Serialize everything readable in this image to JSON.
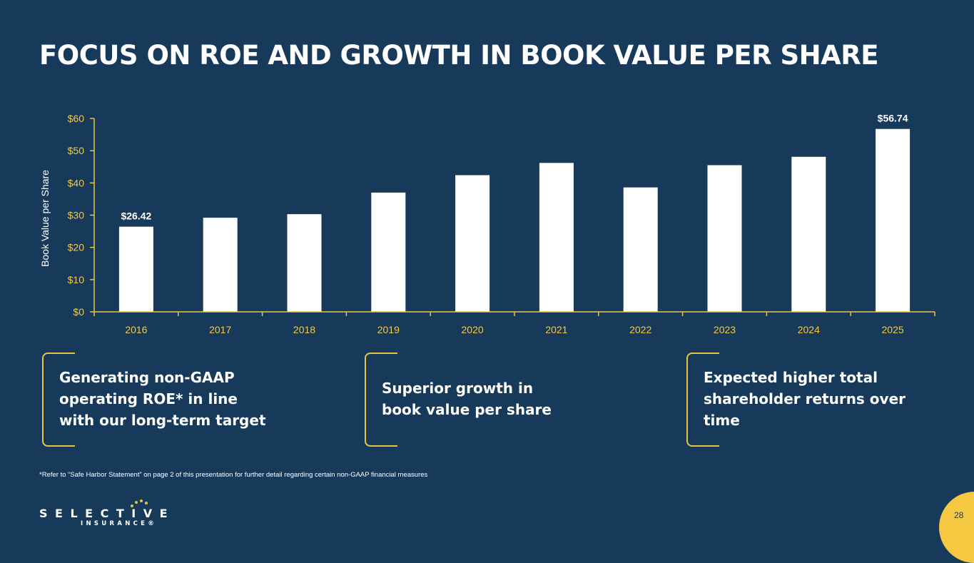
{
  "slide": {
    "title": "FOCUS ON ROE AND GROWTH IN BOOK VALUE PER SHARE",
    "page_number": "28",
    "footnote": "*Refer to “Safe Harbor Statement” on page 2 of this presentation for further detail regarding certain non-GAAP financial measures"
  },
  "chart_data": {
    "type": "bar",
    "title": "",
    "xlabel": "",
    "ylabel": "Book Value per Share",
    "categories": [
      "2016",
      "2017",
      "2018",
      "2019",
      "2020",
      "2021",
      "2022",
      "2023",
      "2024",
      "2025"
    ],
    "values": [
      26.42,
      29.2,
      30.3,
      37.0,
      42.4,
      46.2,
      38.6,
      45.5,
      48.1,
      56.74
    ],
    "data_labels": [
      "$26.42",
      "",
      "",
      "",
      "",
      "",
      "",
      "",
      "",
      "$56.74"
    ],
    "ylim": [
      0,
      60
    ],
    "yticks": [
      0,
      10,
      20,
      30,
      40,
      50,
      60
    ],
    "ytick_labels": [
      "$0",
      "$10",
      "$20",
      "$30",
      "$40",
      "$50",
      "$60"
    ],
    "grid": false,
    "legend": "none",
    "bar_color": "#FFFFFF",
    "axis_color": "#E8C547"
  },
  "callouts": [
    {
      "text": "Generating non-GAAP operating ROE* in line with our long-term target"
    },
    {
      "text": "Superior growth in book value per share"
    },
    {
      "text": "Expected higher total shareholder returns over time"
    }
  ],
  "logo": {
    "name": "SELECTIVE",
    "sub": "INSURANCE®"
  },
  "colors": {
    "background": "#173A5A",
    "accent": "#E8C547",
    "text": "#FFFFFF",
    "badge": "#F5C842"
  }
}
